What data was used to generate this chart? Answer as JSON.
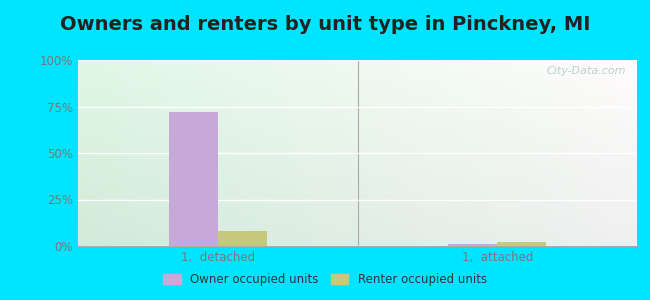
{
  "title": "Owners and renters by unit type in Pinckney, MI",
  "categories": [
    "1,  detached",
    "1,  attached"
  ],
  "owner_values": [
    72,
    1
  ],
  "renter_values": [
    8,
    2
  ],
  "owner_color": "#c8a8d8",
  "renter_color": "#c8c87a",
  "ylim": [
    0,
    100
  ],
  "yticks": [
    0,
    25,
    50,
    75,
    100
  ],
  "ytick_labels": [
    "0%",
    "25%",
    "50%",
    "75%",
    "100%"
  ],
  "bg_topleft": "#e0f5e8",
  "bg_topright": "#f5fff8",
  "bg_bottomleft": "#c8ecd8",
  "bg_bottomright": "#e8faf0",
  "outer_bg": "#00e5ff",
  "title_fontsize": 14,
  "watermark": "City-Data.com",
  "legend_owner": "Owner occupied units",
  "legend_renter": "Renter occupied units",
  "bar_width": 0.35,
  "group_positions": [
    1.0,
    3.0
  ],
  "xlim": [
    0,
    4
  ]
}
